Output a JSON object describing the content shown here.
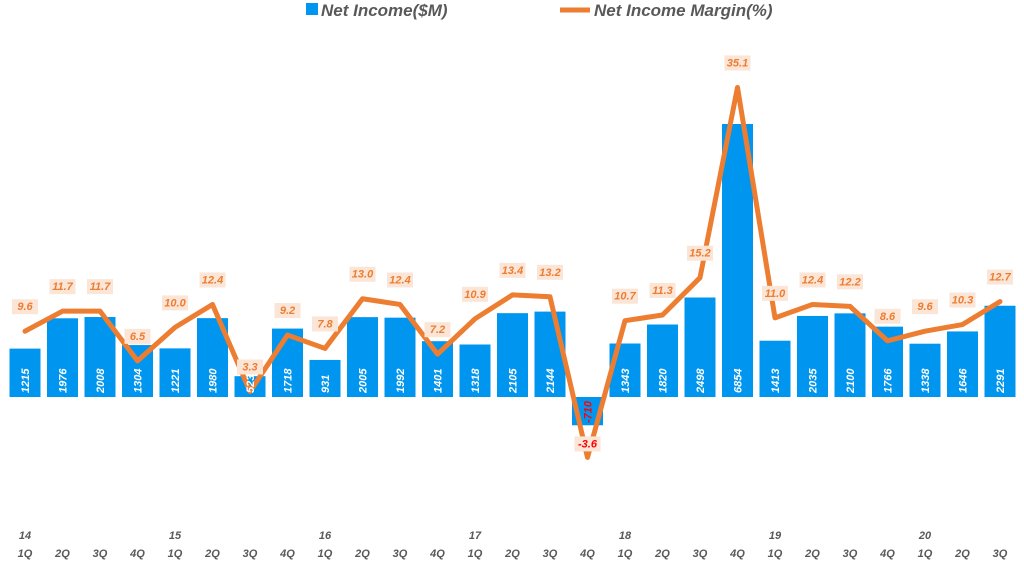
{
  "chart_data": {
    "type": "bar+line",
    "legend": {
      "placement": "top"
    },
    "categories": [
      "1Q",
      "2Q",
      "3Q",
      "4Q",
      "1Q",
      "2Q",
      "3Q",
      "4Q",
      "1Q",
      "2Q",
      "3Q",
      "4Q",
      "1Q",
      "2Q",
      "3Q",
      "4Q",
      "1Q",
      "2Q",
      "3Q",
      "4Q",
      "1Q",
      "2Q",
      "3Q",
      "4Q",
      "1Q",
      "2Q",
      "3Q"
    ],
    "year_labels": {
      "0": "14",
      "4": "15",
      "8": "16",
      "12": "17",
      "16": "18",
      "20": "19",
      "24": "20"
    },
    "series": [
      {
        "name": "Net Income($M)",
        "type": "bar",
        "color": "#0096F0",
        "values": [
          1215,
          1976,
          2008,
          1304,
          1221,
          1980,
          523,
          1718,
          931,
          2005,
          1992,
          1401,
          1318,
          2105,
          2144,
          -710,
          1343,
          1820,
          2498,
          6854,
          1413,
          2035,
          2100,
          1766,
          1338,
          1646,
          2291
        ]
      },
      {
        "name": "Net Income Margin(%)",
        "type": "line",
        "color": "#ED7D31",
        "values": [
          9.6,
          11.7,
          11.7,
          6.5,
          10.0,
          12.4,
          3.3,
          9.2,
          7.8,
          13.0,
          12.4,
          7.2,
          10.9,
          13.4,
          13.2,
          -3.6,
          10.7,
          11.3,
          15.2,
          35.1,
          11.0,
          12.4,
          12.2,
          8.6,
          9.6,
          10.3,
          12.7
        ]
      }
    ],
    "grid": false,
    "negative_label_color": "#FF0000"
  }
}
